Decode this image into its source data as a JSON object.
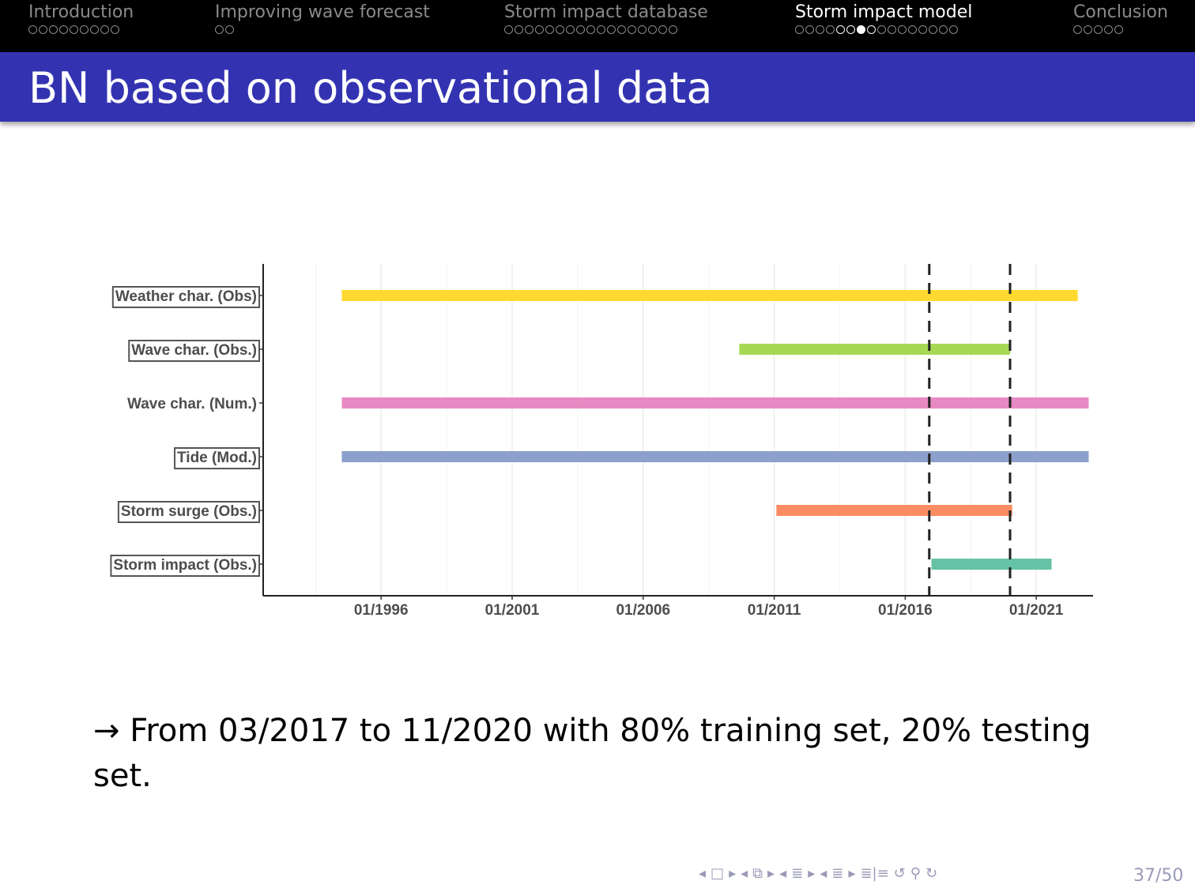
{
  "nav": {
    "sections": [
      {
        "label": "Introduction",
        "dots": 9,
        "current": false
      },
      {
        "label": "Improving wave forecast",
        "dots": 2,
        "current": false
      },
      {
        "label": "Storm impact database",
        "dots": 17,
        "current": false
      },
      {
        "label": "Storm impact model",
        "dots": 16,
        "current": true,
        "subsection_dots": [
          5,
          6,
          7,
          8
        ],
        "filled_dot": 7
      },
      {
        "label": "Conclusion",
        "dots": 5,
        "current": false
      }
    ]
  },
  "slide": {
    "title": "BN based on observational data",
    "body_text": "→ From 03/2017 to 11/2020 with 80% training set, 20% testing set.",
    "page_number": "37/50"
  },
  "colors": {
    "nav_bg": "#000000",
    "title_bg": "#3333b2",
    "nav_inactive": "#8a8a8a",
    "nav_active": "#ffffff"
  },
  "chart_data": {
    "type": "bar",
    "orientation": "horizontal-timeline",
    "title": "",
    "xlabel": "",
    "ylabel": "",
    "x_ticks": [
      "01/1996",
      "01/2001",
      "01/2006",
      "01/2011",
      "01/2016",
      "01/2021"
    ],
    "xlim": [
      "1991-07",
      "2023-03"
    ],
    "grid": true,
    "series": [
      {
        "name": "Weather char. (Obs)",
        "start": "1994-07",
        "end": "2022-08",
        "color": "#ffd92f",
        "boxed": true
      },
      {
        "name": "Wave char. (Obs.)",
        "start": "2009-09",
        "end": "2020-01",
        "color": "#a6d854",
        "boxed": true
      },
      {
        "name": "Wave char. (Num.)",
        "start": "1994-07",
        "end": "2023-01",
        "color": "#e78ac3",
        "boxed": false
      },
      {
        "name": "Tide (Mod.)",
        "start": "1994-07",
        "end": "2023-01",
        "color": "#8da0cb",
        "boxed": true
      },
      {
        "name": "Storm surge (Obs.)",
        "start": "2011-02",
        "end": "2020-02",
        "color": "#fc8d62",
        "boxed": true
      },
      {
        "name": "Storm impact (Obs.)",
        "start": "2017-01",
        "end": "2021-08",
        "color": "#66c2a5",
        "boxed": true
      }
    ],
    "vlines": [
      "2016-12",
      "2020-01"
    ]
  },
  "footer_nav": {
    "icons": [
      "arrow-left-icon",
      "frame-icon",
      "arrow-right-icon",
      "arrow-left-icon",
      "subsection-icon",
      "arrow-right-icon",
      "arrow-left-icon",
      "section-icon",
      "arrow-right-icon",
      "arrow-left-icon",
      "section-icon",
      "arrow-right-icon",
      "align-icon",
      "undo-icon",
      "search-icon",
      "redo-icon"
    ]
  }
}
